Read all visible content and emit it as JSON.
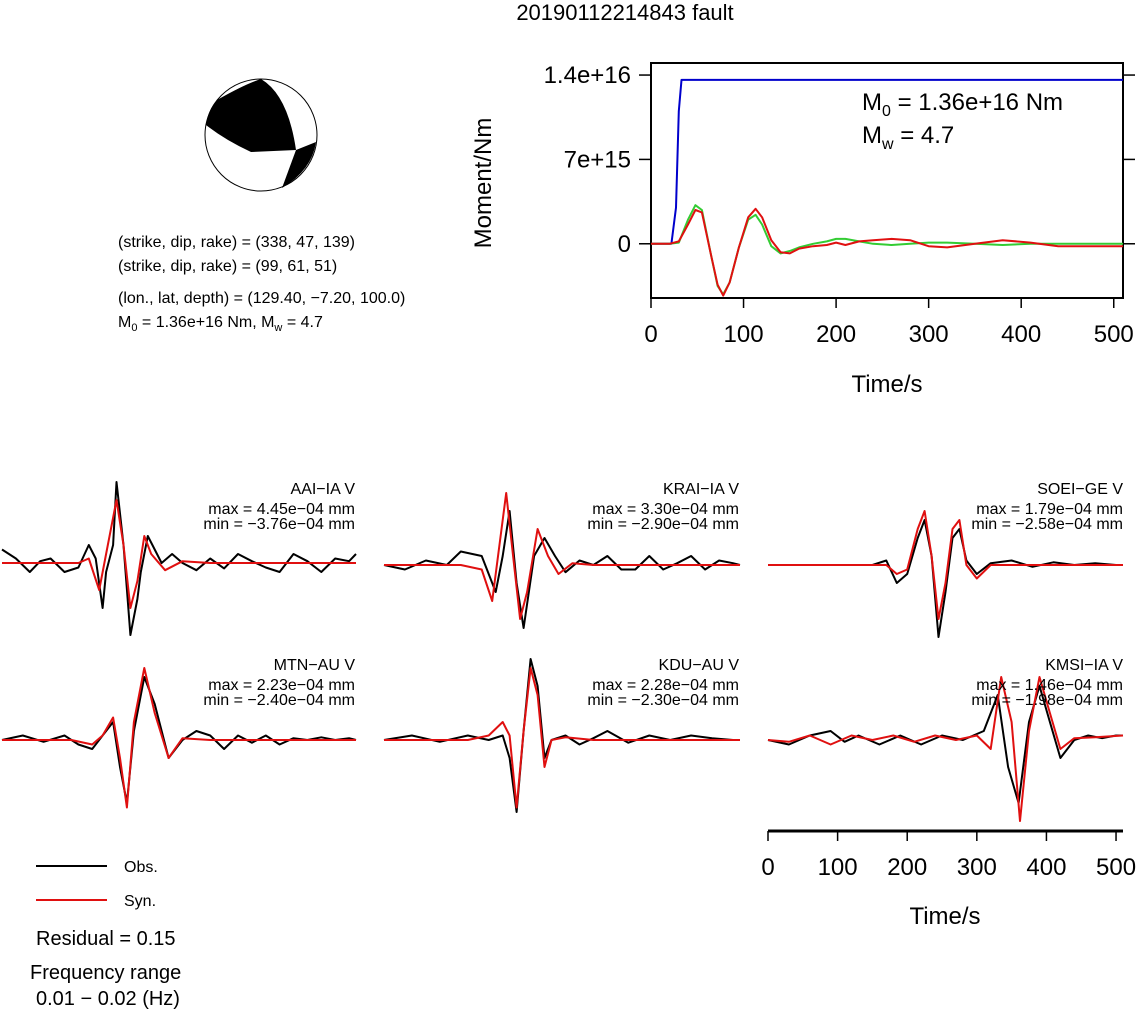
{
  "title": "20190112214843 fault",
  "mechanism": {
    "line1": "(strike, dip, rake) = (338, 47, 139)",
    "line2": "(strike, dip, rake) = (99, 61, 51)",
    "line3": "(lon., lat, depth) = (129.40, −7.20, 100.0)",
    "m0_prefix": "M",
    "m0_sub": "0",
    "m0_rest": " = 1.36e+16 Nm, M",
    "mw_sub": "w",
    "mw_rest": " = 4.7"
  },
  "moment_plot": {
    "ylabel": "Moment/Nm",
    "xlabel": "Time/s",
    "yticks": [
      "1.4e+16",
      "7e+15",
      "0"
    ],
    "xticks": [
      "0",
      "100",
      "200",
      "300",
      "400",
      "500"
    ],
    "m0_label": "M",
    "m0_sub": "0",
    "m0_value": " = 1.36e+16 Nm",
    "mw_label": "M",
    "mw_sub": "w",
    "mw_value": " = 4.7"
  },
  "stations": [
    {
      "name": "AAI−IA V",
      "max": "max = 4.45e−04 mm",
      "min": "min = −3.76e−04 mm"
    },
    {
      "name": "KRAI−IA V",
      "max": "max = 3.30e−04 mm",
      "min": "min = −2.90e−04 mm"
    },
    {
      "name": "SOEI−GE V",
      "max": "max = 1.79e−04 mm",
      "min": "min = −2.58e−04 mm"
    },
    {
      "name": "MTN−AU V",
      "max": "max = 2.23e−04 mm",
      "min": "min = −2.40e−04 mm"
    },
    {
      "name": "KDU−AU V",
      "max": "max = 2.28e−04 mm",
      "min": "min = −2.30e−04 mm"
    },
    {
      "name": "KMSI−IA V",
      "max": "max = 1.46e−04 mm",
      "min": "min = −1.98e−04 mm"
    }
  ],
  "wave_axis": {
    "xlabel": "Time/s",
    "xticks": [
      "0",
      "100",
      "200",
      "300",
      "400",
      "500"
    ]
  },
  "legend": {
    "obs": "Obs.",
    "syn": "Syn."
  },
  "residual": "Residual = 0.15",
  "freq_label": "Frequency range",
  "freq_value": "0.01 − 0.02 (Hz)",
  "colors": {
    "obs": "#000000",
    "syn": "#e01010",
    "moment": "#0000cc",
    "stf_green": "#33cc33",
    "stf_red": "#e01010"
  },
  "chart_data": [
    {
      "type": "line",
      "title": "",
      "xlabel": "Time/s",
      "ylabel": "Moment/Nm",
      "xlim": [
        0,
        510
      ],
      "ylim": [
        -4500000000000000.0,
        1.5e+16
      ],
      "series": [
        {
          "color": "blue",
          "x": [
            0,
            22,
            27,
            30,
            33,
            510
          ],
          "values": [
            0,
            0,
            3000000000000000.0,
            1.1e+16,
            1.36e+16,
            1.36e+16
          ]
        },
        {
          "color": "green",
          "x": [
            0,
            20,
            30,
            40,
            48,
            55,
            65,
            72,
            78,
            85,
            95,
            105,
            113,
            120,
            130,
            140,
            150,
            160,
            175,
            190,
            200,
            210,
            225,
            240,
            260,
            280,
            300,
            320,
            350,
            380,
            410,
            440,
            470,
            510
          ],
          "values": [
            0,
            0,
            100000000000000.0,
            2000000000000000.0,
            3200000000000000.0,
            2800000000000000.0,
            -1000000000000000.0,
            -3500000000000000.0,
            -4200000000000000.0,
            -3200000000000000.0,
            -300000000000000.0,
            2000000000000000.0,
            2400000000000000.0,
            1600000000000000.0,
            -200000000000000.0,
            -800000000000000.0,
            -600000000000000.0,
            -300000000000000.0,
            0,
            200000000000000.0,
            400000000000000.0,
            400000000000000.0,
            200000000000000.0,
            0,
            -100000000000000.0,
            0,
            100000000000000.0,
            100000000000000.0,
            0,
            -100000000000000.0,
            0,
            0,
            0,
            0
          ]
        },
        {
          "color": "red",
          "x": [
            0,
            20,
            30,
            40,
            48,
            55,
            65,
            72,
            78,
            85,
            95,
            105,
            113,
            120,
            130,
            140,
            150,
            160,
            175,
            190,
            200,
            210,
            225,
            240,
            260,
            280,
            300,
            320,
            350,
            380,
            410,
            440,
            470,
            510
          ],
          "values": [
            0,
            0,
            200000000000000.0,
            1600000000000000.0,
            2800000000000000.0,
            2600000000000000.0,
            -1000000000000000.0,
            -3400000000000000.0,
            -4300000000000000.0,
            -3200000000000000.0,
            -300000000000000.0,
            2200000000000000.0,
            2900000000000000.0,
            2200000000000000.0,
            300000000000000.0,
            -700000000000000.0,
            -800000000000000.0,
            -400000000000000.0,
            -200000000000000.0,
            -100000000000000.0,
            100000000000000.0,
            -100000000000000.0,
            200000000000000.0,
            300000000000000.0,
            400000000000000.0,
            300000000000000.0,
            -200000000000000.0,
            -300000000000000.0,
            0,
            300000000000000.0,
            100000000000000.0,
            -200000000000000.0,
            -200000000000000.0,
            -200000000000000.0
          ]
        }
      ]
    },
    {
      "type": "line",
      "title": "AAI−IA V",
      "xlim": [
        0,
        510
      ],
      "ylim": [
        -1,
        1
      ],
      "series": [
        {
          "color": "black",
          "x": [
            0,
            20,
            40,
            55,
            70,
            90,
            110,
            125,
            135,
            145,
            150,
            160,
            165,
            175,
            185,
            195,
            200,
            210,
            230,
            245,
            260,
            280,
            300,
            320,
            340,
            360,
            380,
            400,
            420,
            440,
            460,
            480,
            500,
            510
          ],
          "values": [
            0.15,
            0.05,
            -0.1,
            0.02,
            0.05,
            -0.1,
            -0.05,
            0.2,
            0.05,
            -0.5,
            -0.1,
            0.2,
            0.9,
            0.2,
            -0.8,
            -0.4,
            -0.1,
            0.3,
            0,
            0.1,
            0,
            -0.08,
            0.05,
            -0.06,
            0.1,
            0.02,
            -0.05,
            -0.1,
            0.1,
            0.02,
            -0.1,
            0.05,
            0.02,
            0.1
          ]
        },
        {
          "color": "red",
          "x": [
            0,
            40,
            80,
            110,
            125,
            140,
            150,
            165,
            175,
            185,
            195,
            205,
            215,
            235,
            260,
            300,
            350,
            400,
            450,
            510
          ],
          "values": [
            0,
            0,
            0,
            0,
            0.05,
            -0.3,
            0.1,
            0.7,
            0.2,
            -0.5,
            -0.2,
            0.3,
            0.1,
            -0.08,
            0.02,
            0,
            0,
            0,
            0,
            0
          ]
        }
      ]
    },
    {
      "type": "line",
      "title": "KRAI−IA V",
      "xlim": [
        0,
        510
      ],
      "ylim": [
        -1,
        1
      ],
      "series": [
        {
          "color": "black",
          "x": [
            0,
            30,
            60,
            90,
            110,
            140,
            160,
            170,
            180,
            190,
            200,
            215,
            230,
            245,
            260,
            280,
            300,
            320,
            340,
            360,
            380,
            400,
            420,
            440,
            460,
            480,
            500,
            510
          ],
          "values": [
            0,
            -0.05,
            0.05,
            0,
            0.15,
            0.1,
            -0.3,
            0.1,
            0.6,
            -0.2,
            -0.7,
            0.1,
            0.3,
            0.1,
            -0.08,
            0.05,
            0,
            0.1,
            -0.05,
            -0.05,
            0.1,
            -0.05,
            0.02,
            0.1,
            -0.05,
            0.05,
            0.02,
            0
          ]
        },
        {
          "color": "red",
          "x": [
            0,
            60,
            110,
            140,
            155,
            165,
            175,
            185,
            195,
            205,
            220,
            235,
            250,
            270,
            300,
            350,
            400,
            450,
            510
          ],
          "values": [
            0,
            0,
            0,
            -0.05,
            -0.4,
            0.2,
            0.8,
            0.1,
            -0.6,
            -0.3,
            0.4,
            0.1,
            -0.1,
            0.02,
            0,
            0,
            0,
            0,
            0
          ]
        }
      ]
    },
    {
      "type": "line",
      "title": "SOEI−GE V",
      "xlim": [
        0,
        510
      ],
      "ylim": [
        -1,
        1
      ],
      "series": [
        {
          "color": "black",
          "x": [
            0,
            50,
            100,
            150,
            170,
            185,
            200,
            215,
            225,
            235,
            245,
            255,
            265,
            275,
            285,
            300,
            320,
            350,
            380,
            410,
            440,
            470,
            500,
            510
          ],
          "values": [
            0,
            0,
            0,
            0,
            0.05,
            -0.2,
            -0.1,
            0.3,
            0.5,
            0.1,
            -0.8,
            -0.3,
            0.3,
            0.4,
            0.05,
            -0.1,
            0.02,
            0.05,
            -0.02,
            0.03,
            0,
            0.02,
            0,
            0
          ]
        },
        {
          "color": "red",
          "x": [
            0,
            50,
            100,
            150,
            170,
            185,
            200,
            215,
            225,
            235,
            245,
            255,
            265,
            275,
            285,
            300,
            320,
            360,
            400,
            450,
            510
          ],
          "values": [
            0,
            0,
            0,
            0,
            0,
            -0.1,
            -0.05,
            0.4,
            0.6,
            0.1,
            -0.6,
            -0.2,
            0.4,
            0.5,
            0,
            -0.15,
            0,
            0,
            0,
            0,
            0
          ]
        }
      ]
    },
    {
      "type": "line",
      "title": "MTN−AU V",
      "xlim": [
        0,
        510
      ],
      "ylim": [
        -1,
        1
      ],
      "series": [
        {
          "color": "black",
          "x": [
            0,
            30,
            60,
            90,
            110,
            130,
            145,
            160,
            170,
            180,
            190,
            205,
            220,
            240,
            260,
            280,
            300,
            320,
            340,
            360,
            380,
            400,
            420,
            440,
            460,
            480,
            500,
            510
          ],
          "values": [
            0,
            0.05,
            -0.02,
            0.05,
            -0.05,
            -0.1,
            0.05,
            0.2,
            -0.3,
            -0.7,
            0.1,
            0.7,
            0.4,
            -0.2,
            0,
            0.1,
            0.05,
            -0.1,
            0.05,
            -0.03,
            0.05,
            -0.05,
            0.02,
            0,
            0.03,
            0,
            0.02,
            0
          ]
        },
        {
          "color": "red",
          "x": [
            0,
            60,
            100,
            130,
            145,
            160,
            170,
            180,
            190,
            205,
            220,
            240,
            260,
            300,
            350,
            400,
            450,
            510
          ],
          "values": [
            0,
            0,
            0,
            -0.05,
            0.05,
            0.25,
            -0.2,
            -0.75,
            0.2,
            0.8,
            0.3,
            -0.2,
            0.02,
            0,
            0,
            0,
            0,
            0
          ]
        }
      ]
    },
    {
      "type": "line",
      "title": "KDU−AU V",
      "xlim": [
        0,
        510
      ],
      "ylim": [
        -1,
        1
      ],
      "series": [
        {
          "color": "black",
          "x": [
            0,
            40,
            80,
            120,
            150,
            170,
            180,
            190,
            200,
            210,
            220,
            230,
            240,
            260,
            280,
            300,
            320,
            350,
            380,
            410,
            440,
            470,
            500,
            510
          ],
          "values": [
            0,
            0.05,
            -0.02,
            0.05,
            0,
            0.05,
            -0.2,
            -0.8,
            0.1,
            0.9,
            0.6,
            -0.2,
            0,
            0.05,
            -0.05,
            0.02,
            0.1,
            -0.03,
            0.05,
            0,
            0.05,
            0.02,
            0,
            0
          ]
        },
        {
          "color": "red",
          "x": [
            0,
            60,
            120,
            150,
            170,
            180,
            190,
            200,
            210,
            220,
            230,
            240,
            260,
            300,
            350,
            400,
            450,
            510
          ],
          "values": [
            0,
            0,
            0,
            0.05,
            0.2,
            0.05,
            -0.75,
            0.1,
            0.8,
            0.5,
            -0.3,
            0,
            0.03,
            0,
            0,
            0,
            0,
            0
          ]
        }
      ]
    },
    {
      "type": "line",
      "title": "KMSI−IA V",
      "xlabel": "Time/s",
      "xlim": [
        0,
        510
      ],
      "ylim": [
        -1,
        1
      ],
      "series": [
        {
          "color": "black",
          "x": [
            0,
            30,
            60,
            90,
            110,
            130,
            160,
            190,
            220,
            250,
            280,
            310,
            330,
            345,
            360,
            375,
            390,
            405,
            420,
            440,
            460,
            480,
            500,
            510
          ],
          "values": [
            0,
            -0.05,
            0.05,
            0.1,
            -0.02,
            0.05,
            -0.05,
            0.05,
            -0.05,
            0.05,
            0,
            0.1,
            0.5,
            -0.3,
            -0.7,
            0.2,
            0.6,
            0.2,
            -0.2,
            0,
            0.05,
            0.02,
            0.05,
            0.05
          ]
        },
        {
          "color": "red",
          "x": [
            0,
            30,
            60,
            90,
            120,
            150,
            180,
            210,
            240,
            270,
            300,
            320,
            335,
            350,
            362,
            375,
            390,
            405,
            420,
            440,
            470,
            510
          ],
          "values": [
            0,
            -0.02,
            0.05,
            -0.05,
            0.05,
            0,
            0.05,
            -0.02,
            0.05,
            0,
            0.05,
            -0.1,
            0.7,
            0.2,
            -0.9,
            0.1,
            0.7,
            0.3,
            -0.1,
            0.02,
            0.03,
            0.05
          ]
        }
      ]
    }
  ]
}
